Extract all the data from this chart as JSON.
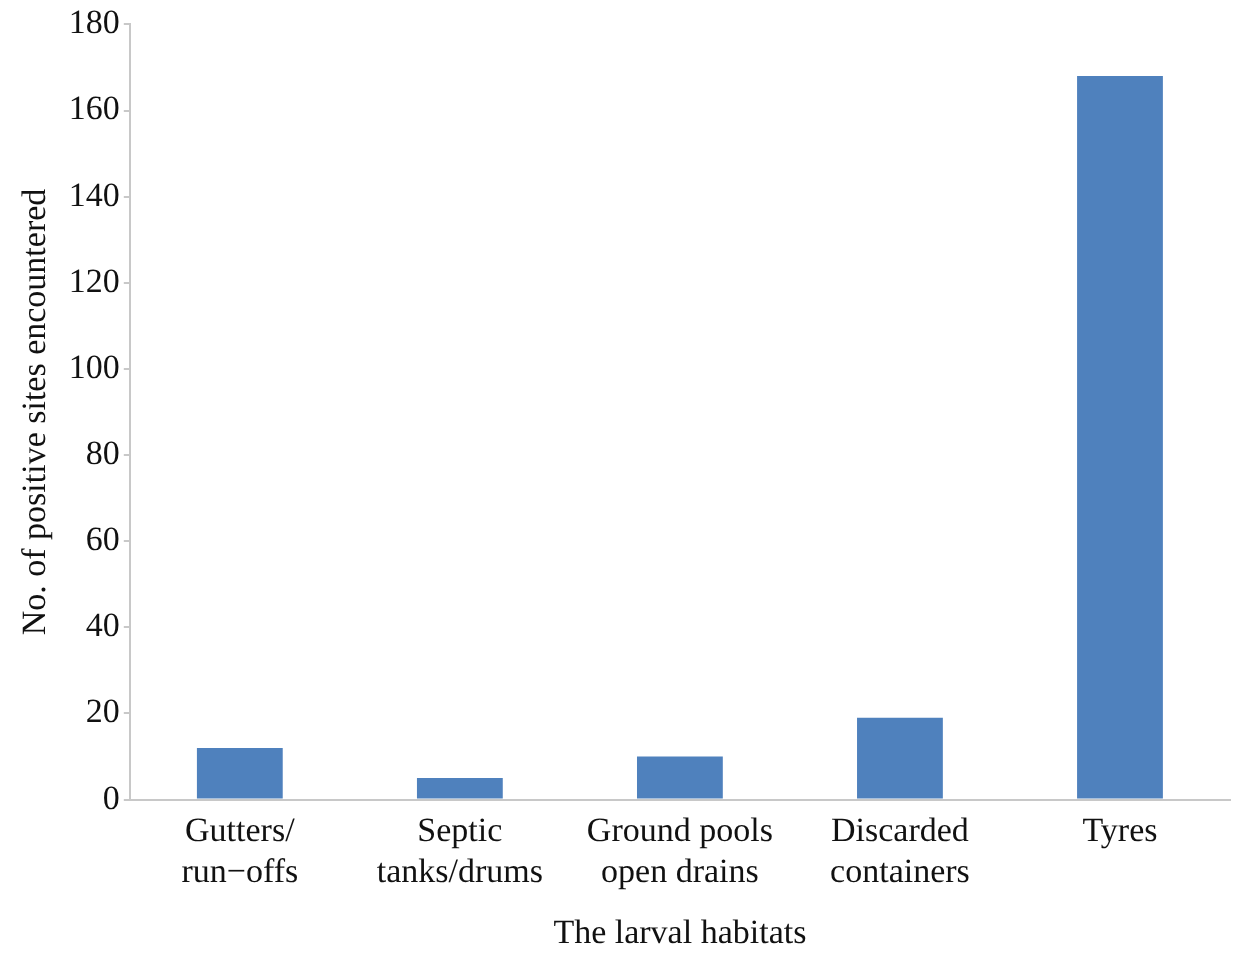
{
  "chart_data": {
    "type": "bar",
    "xlabel": "The larval habitats",
    "ylabel": "No. of positive sites encountered",
    "categories": [
      "Gutters/\nrun−offs",
      "Septic\ntanks/drums",
      "Ground pools\nopen drains",
      "Discarded\ncontainers",
      "Tyres"
    ],
    "values": [
      12,
      5,
      10,
      19,
      168
    ],
    "color": "#4f81bd",
    "ylim": [
      0,
      180
    ],
    "yticks": [
      0,
      20,
      40,
      60,
      80,
      100,
      120,
      140,
      160,
      180
    ],
    "grid": false,
    "legend": false
  }
}
